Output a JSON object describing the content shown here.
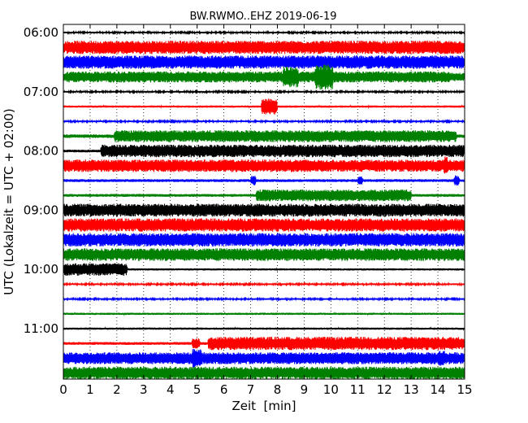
{
  "chart_data": {
    "type": "line",
    "title": "BW.RWMO..EHZ 2019-06-19",
    "xlabel": "Zeit  [min]",
    "ylabel": "UTC (Lokalzeit = UTC + 02:00)",
    "xlim": [
      0,
      15
    ],
    "x_ticks": [
      "0",
      "1",
      "2",
      "3",
      "4",
      "5",
      "6",
      "7",
      "8",
      "9",
      "10",
      "11",
      "12",
      "13",
      "14",
      "15"
    ],
    "y_ticks": [
      {
        "label": "06:00",
        "row": 0
      },
      {
        "label": "07:00",
        "row": 4
      },
      {
        "label": "08:00",
        "row": 8
      },
      {
        "label": "09:00",
        "row": 12
      },
      {
        "label": "10:00",
        "row": 16
      },
      {
        "label": "11:00",
        "row": 20
      }
    ],
    "grid": "vertical-dotted",
    "row_colors": [
      "#000000",
      "#ff0000",
      "#0000ff",
      "#008000"
    ],
    "traces": [
      {
        "row": 0,
        "base": 0.12,
        "segs": []
      },
      {
        "row": 1,
        "base": 0.85,
        "segs": [
          [
            0.1,
            15,
            0.95
          ]
        ]
      },
      {
        "row": 2,
        "base": 0.85,
        "segs": [
          [
            0.1,
            15,
            0.95
          ]
        ]
      },
      {
        "row": 3,
        "base": 0.6,
        "segs": [
          [
            0.1,
            14.5,
            0.8
          ],
          [
            8.2,
            8.8,
            1.5
          ],
          [
            9.4,
            10.1,
            1.8
          ]
        ]
      },
      {
        "row": 4,
        "base": 0.12,
        "segs": []
      },
      {
        "row": 5,
        "base": 0.15,
        "segs": [
          [
            7.4,
            8.0,
            1.2
          ]
        ]
      },
      {
        "row": 6,
        "base": 0.12,
        "segs": []
      },
      {
        "row": 7,
        "base": 0.25,
        "segs": [
          [
            1.9,
            14.7,
            0.85
          ]
        ]
      },
      {
        "row": 8,
        "base": 0.2,
        "segs": [
          [
            1.4,
            15,
            0.9
          ]
        ]
      },
      {
        "row": 9,
        "base": 0.85,
        "segs": [
          [
            0,
            9.3,
            0.9
          ],
          [
            14.2,
            14.4,
            1.4
          ]
        ]
      },
      {
        "row": 10,
        "base": 0.2,
        "segs": [
          [
            7.0,
            7.2,
            0.7
          ],
          [
            11.0,
            11.2,
            0.6
          ],
          [
            14.6,
            14.8,
            0.8
          ]
        ]
      },
      {
        "row": 11,
        "base": 0.2,
        "segs": [
          [
            7.2,
            13.0,
            0.85
          ]
        ]
      },
      {
        "row": 12,
        "base": 0.9,
        "segs": [
          [
            0,
            15,
            0.92
          ]
        ]
      },
      {
        "row": 13,
        "base": 0.95,
        "segs": [
          [
            0,
            15,
            0.95
          ]
        ]
      },
      {
        "row": 14,
        "base": 0.95,
        "segs": [
          [
            0,
            15,
            0.95
          ]
        ]
      },
      {
        "row": 15,
        "base": 0.9,
        "segs": [
          [
            0,
            15,
            0.9
          ]
        ]
      },
      {
        "row": 16,
        "base": 0.15,
        "segs": [
          [
            0,
            2.4,
            0.9
          ]
        ]
      },
      {
        "row": 17,
        "base": 0.12,
        "segs": []
      },
      {
        "row": 18,
        "base": 0.12,
        "segs": []
      },
      {
        "row": 19,
        "base": 0.15,
        "segs": []
      },
      {
        "row": 20,
        "base": 0.15,
        "segs": []
      },
      {
        "row": 21,
        "base": 0.2,
        "segs": [
          [
            5.4,
            15,
            0.95
          ],
          [
            4.8,
            5.1,
            0.8
          ]
        ]
      },
      {
        "row": 22,
        "base": 0.8,
        "segs": [
          [
            0,
            15,
            0.85
          ],
          [
            4.8,
            5.2,
            1.4
          ],
          [
            14.0,
            14.3,
            1.1
          ]
        ]
      },
      {
        "row": 23,
        "base": 0.85,
        "segs": [
          [
            0,
            15,
            0.9
          ]
        ]
      }
    ]
  }
}
